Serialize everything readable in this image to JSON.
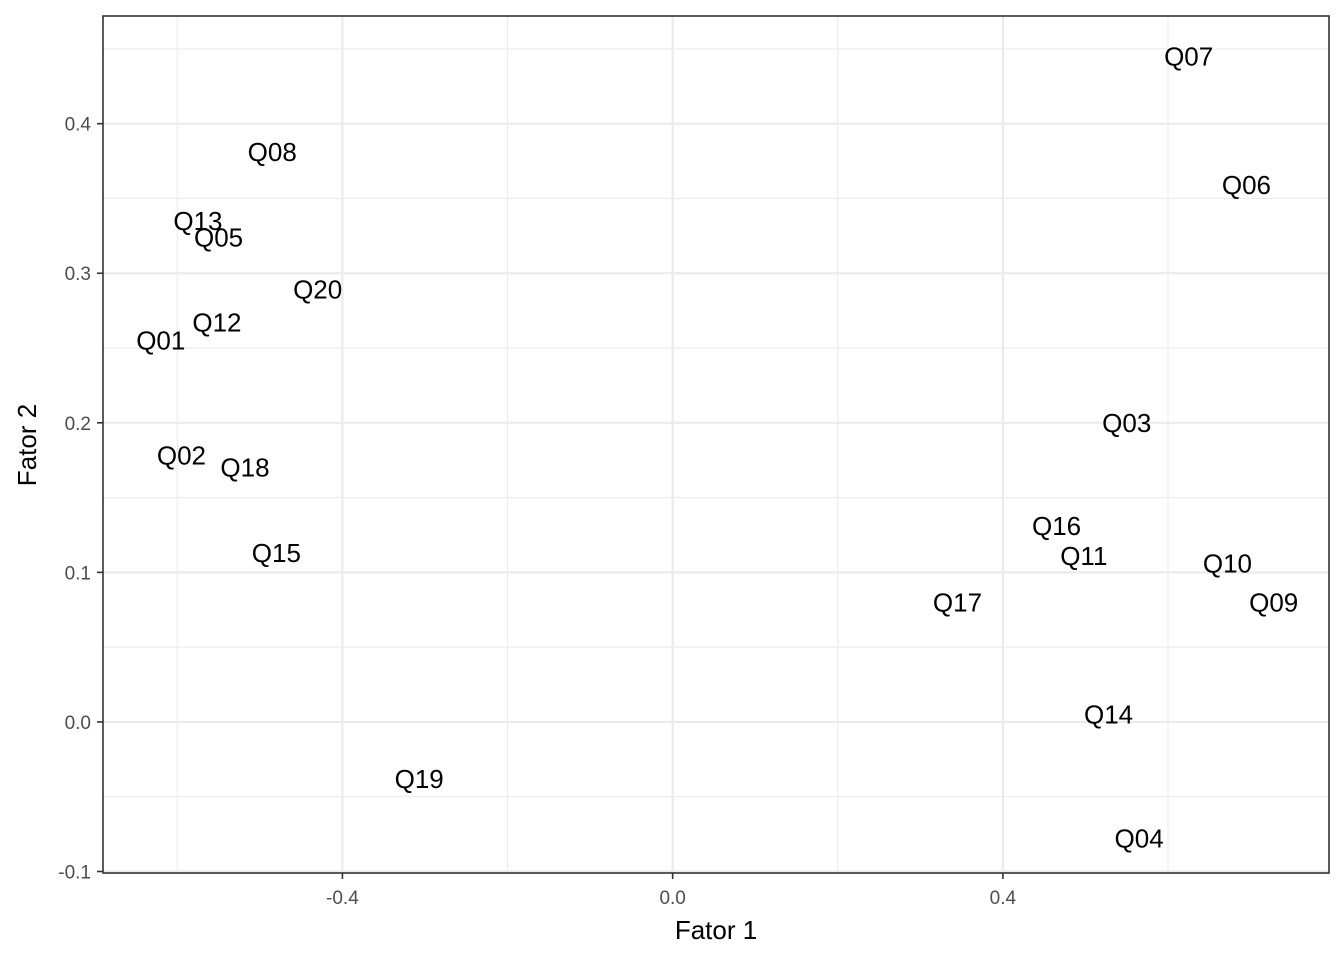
{
  "chart_data": {
    "type": "scatter",
    "mark": "text",
    "title": "",
    "xlabel": "Fator 1",
    "ylabel": "Fator 2",
    "xlim": [
      -0.69,
      0.795
    ],
    "ylim": [
      -0.101,
      0.472
    ],
    "xticks": [
      -0.4,
      0.0,
      0.4
    ],
    "xtick_labels": [
      "-0.4",
      "0.0",
      "0.4"
    ],
    "yticks": [
      -0.1,
      0.0,
      0.1,
      0.2,
      0.3,
      0.4
    ],
    "ytick_labels": [
      "-0.1",
      "0.0",
      "0.1",
      "0.2",
      "0.3",
      "0.4"
    ],
    "grid": true,
    "theme": "bw",
    "points": [
      {
        "label": "Q01",
        "x": -0.62,
        "y": 0.255
      },
      {
        "label": "Q02",
        "x": -0.595,
        "y": 0.178
      },
      {
        "label": "Q03",
        "x": 0.55,
        "y": 0.2
      },
      {
        "label": "Q04",
        "x": 0.565,
        "y": -0.078
      },
      {
        "label": "Q05",
        "x": -0.55,
        "y": 0.324
      },
      {
        "label": "Q06",
        "x": 0.695,
        "y": 0.359
      },
      {
        "label": "Q07",
        "x": 0.625,
        "y": 0.445
      },
      {
        "label": "Q08",
        "x": -0.485,
        "y": 0.381
      },
      {
        "label": "Q09",
        "x": 0.728,
        "y": 0.08
      },
      {
        "label": "Q10",
        "x": 0.672,
        "y": 0.106
      },
      {
        "label": "Q11",
        "x": 0.498,
        "y": 0.111
      },
      {
        "label": "Q12",
        "x": -0.552,
        "y": 0.267
      },
      {
        "label": "Q13",
        "x": -0.575,
        "y": 0.335
      },
      {
        "label": "Q14",
        "x": 0.528,
        "y": 0.005
      },
      {
        "label": "Q15",
        "x": -0.48,
        "y": 0.113
      },
      {
        "label": "Q16",
        "x": 0.465,
        "y": 0.131
      },
      {
        "label": "Q17",
        "x": 0.345,
        "y": 0.08
      },
      {
        "label": "Q18",
        "x": -0.518,
        "y": 0.17
      },
      {
        "label": "Q19",
        "x": -0.307,
        "y": -0.038
      },
      {
        "label": "Q20",
        "x": -0.43,
        "y": 0.289
      }
    ]
  }
}
